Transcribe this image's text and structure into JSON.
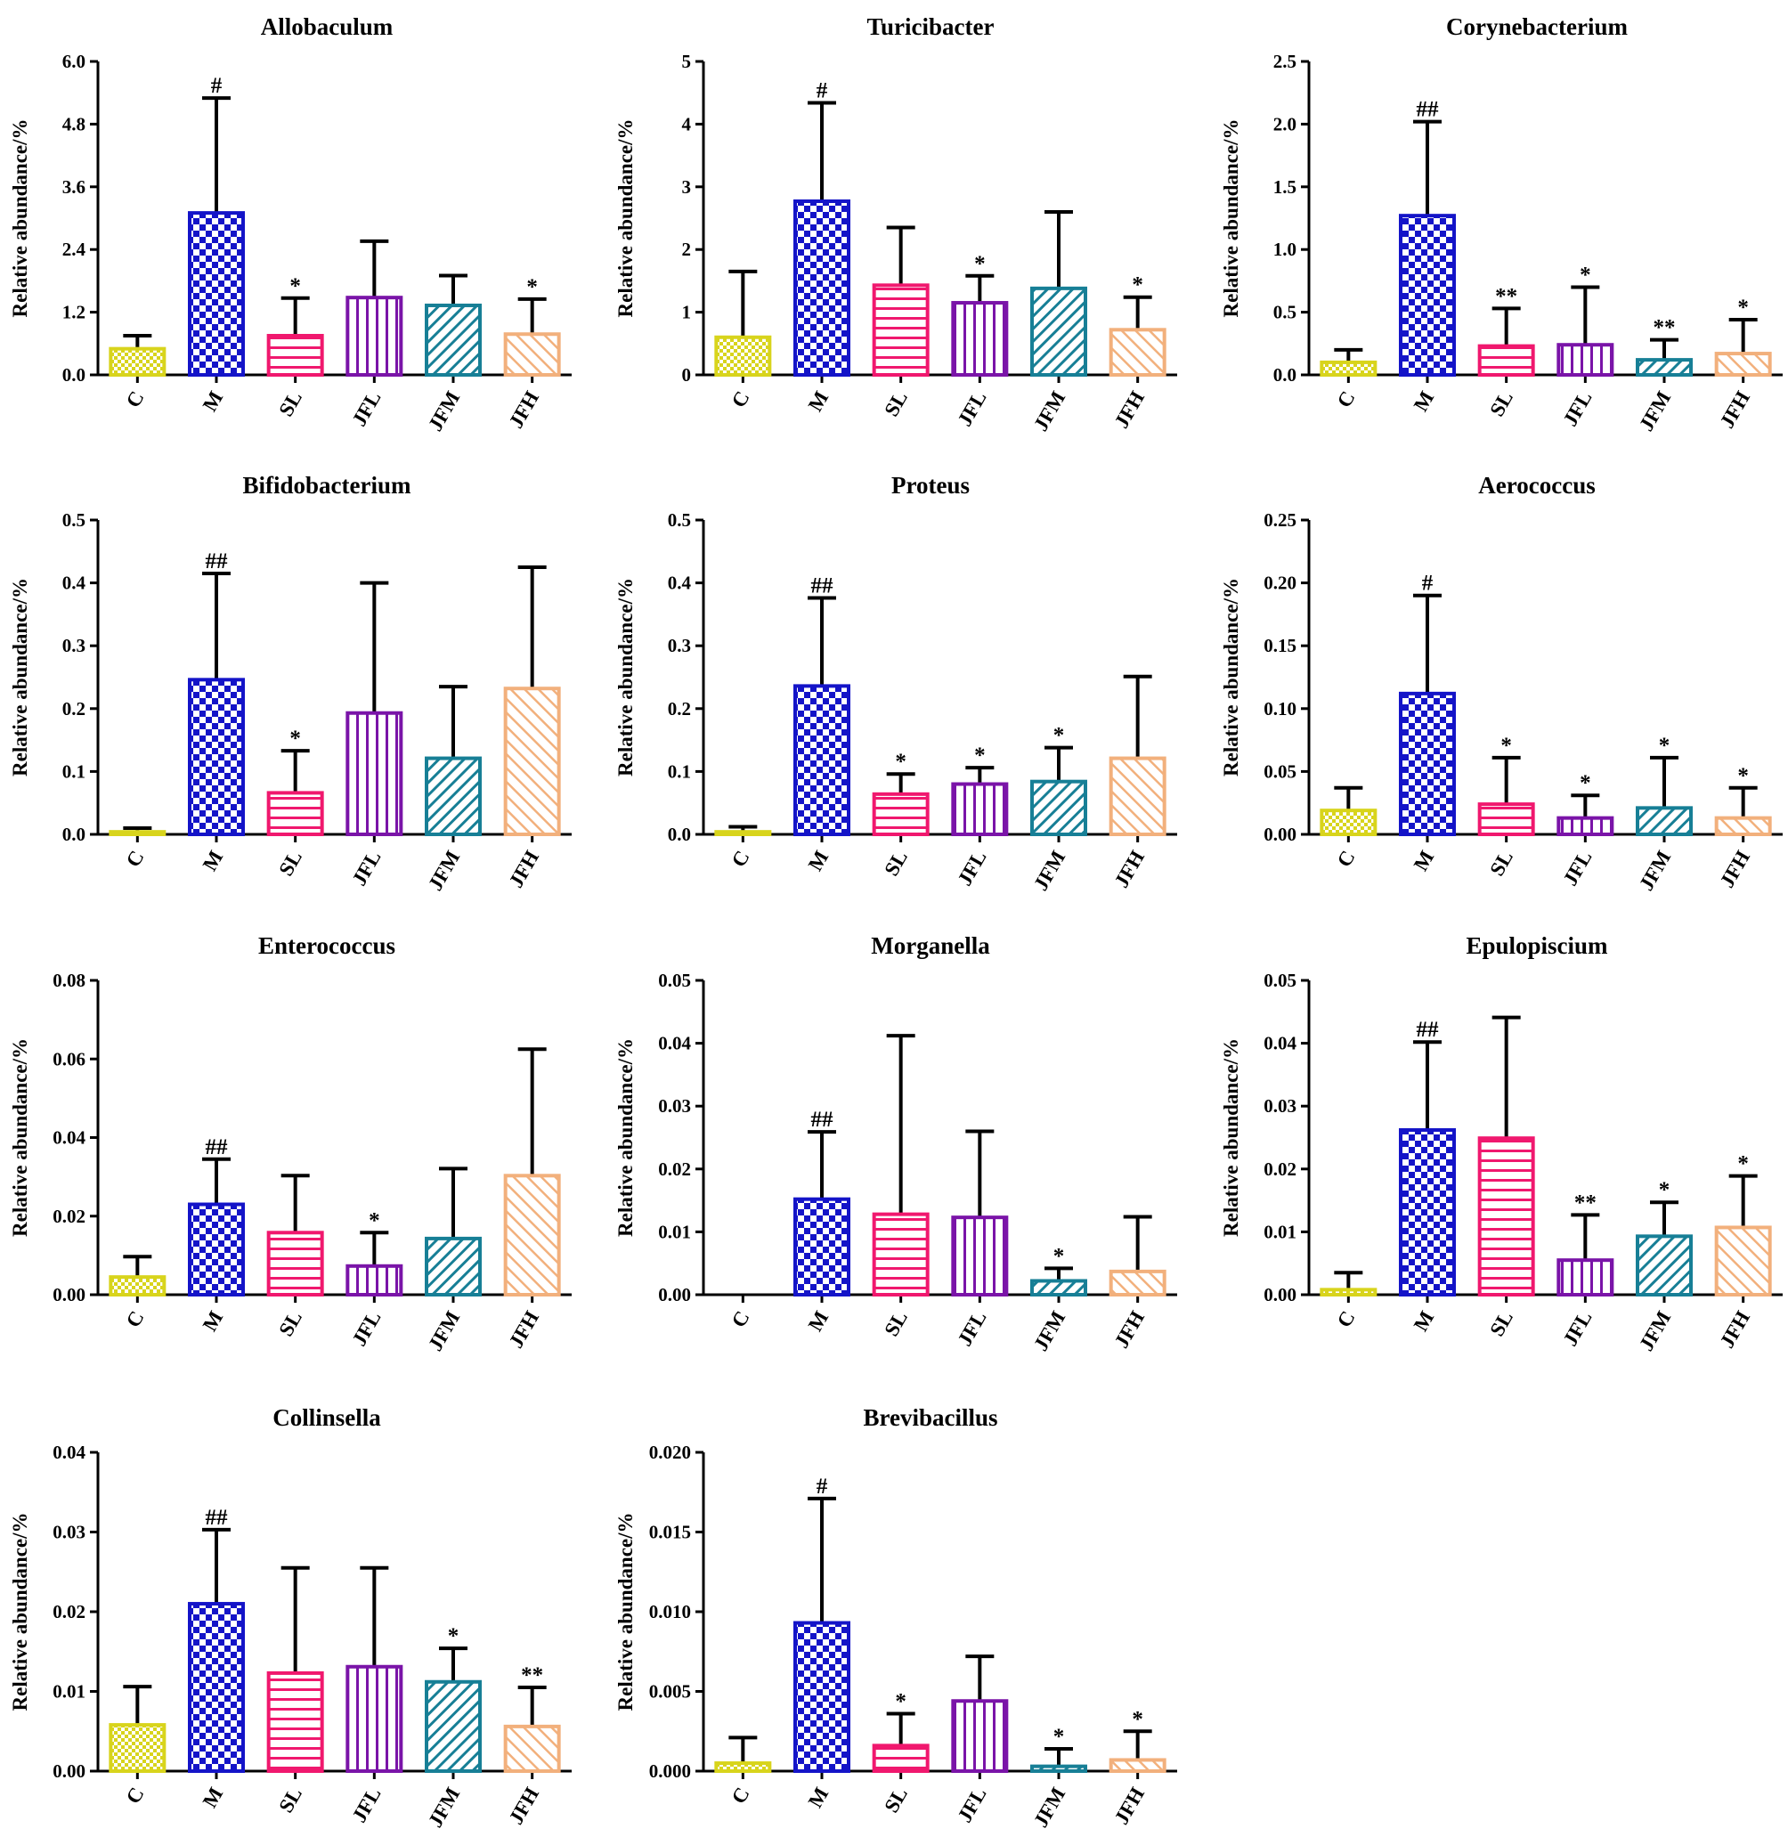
{
  "figure": {
    "ylabel": "Relative abundance/%",
    "groups": [
      "C",
      "M",
      "SL",
      "JFL",
      "JFM",
      "JFH"
    ],
    "colors": {
      "C": "#d8d41c",
      "M": "#1414c8",
      "SL": "#f0186e",
      "JFL": "#7a14a8",
      "JFM": "#177f96",
      "JFH": "#f2b07c"
    }
  },
  "chart_data": [
    {
      "type": "bar",
      "title": "Allobaculum",
      "ylabel": "Relative abundance/%",
      "categories": [
        "C",
        "M",
        "SL",
        "JFL",
        "JFM",
        "JFH"
      ],
      "values": [
        0.5,
        3.1,
        0.75,
        1.48,
        1.33,
        0.78
      ],
      "errors": [
        0.25,
        2.2,
        0.72,
        1.08,
        0.57,
        0.67
      ],
      "annotations": [
        "",
        "#",
        "*",
        "",
        "",
        "*"
      ],
      "ylim": [
        0,
        6.0
      ],
      "ticks": [
        "0.0",
        "1.2",
        "2.4",
        "3.6",
        "4.8",
        "6.0"
      ]
    },
    {
      "type": "bar",
      "title": "Turicibacter",
      "ylabel": "Relative abundance/%",
      "categories": [
        "C",
        "M",
        "SL",
        "JFL",
        "JFM",
        "JFH"
      ],
      "values": [
        0.6,
        2.77,
        1.43,
        1.15,
        1.38,
        0.72
      ],
      "errors": [
        1.05,
        1.57,
        0.92,
        0.43,
        1.22,
        0.52
      ],
      "annotations": [
        "",
        "#",
        "",
        "*",
        "",
        "*"
      ],
      "ylim": [
        0,
        5
      ],
      "ticks": [
        "0",
        "1",
        "2",
        "3",
        "4",
        "5"
      ]
    },
    {
      "type": "bar",
      "title": "Corynebacterium",
      "ylabel": "Relative abundance/%",
      "categories": [
        "C",
        "M",
        "SL",
        "JFL",
        "JFM",
        "JFH"
      ],
      "values": [
        0.1,
        1.27,
        0.23,
        0.24,
        0.12,
        0.17
      ],
      "errors": [
        0.1,
        0.75,
        0.3,
        0.46,
        0.16,
        0.27
      ],
      "annotations": [
        "",
        "##",
        "**",
        "*",
        "**",
        "*"
      ],
      "ylim": [
        0,
        2.5
      ],
      "ticks": [
        "0.0",
        "0.5",
        "1.0",
        "1.5",
        "2.0",
        "2.5"
      ]
    },
    {
      "type": "bar",
      "title": "Bifidobacterium",
      "ylabel": "Relative abundance/%",
      "categories": [
        "C",
        "M",
        "SL",
        "JFL",
        "JFM",
        "JFH"
      ],
      "values": [
        0.004,
        0.246,
        0.066,
        0.193,
        0.121,
        0.232
      ],
      "errors": [
        0.006,
        0.169,
        0.067,
        0.207,
        0.114,
        0.193
      ],
      "annotations": [
        "",
        "##",
        "*",
        "",
        "",
        ""
      ],
      "ylim": [
        0,
        0.5
      ],
      "ticks": [
        "0.0",
        "0.1",
        "0.2",
        "0.3",
        "0.4",
        "0.5"
      ]
    },
    {
      "type": "bar",
      "title": "Proteus",
      "ylabel": "Relative abundance/%",
      "categories": [
        "C",
        "M",
        "SL",
        "JFL",
        "JFM",
        "JFH"
      ],
      "values": [
        0.004,
        0.236,
        0.064,
        0.08,
        0.084,
        0.121
      ],
      "errors": [
        0.008,
        0.14,
        0.032,
        0.026,
        0.054,
        0.13
      ],
      "annotations": [
        "",
        "##",
        "*",
        "*",
        "*",
        ""
      ],
      "ylim": [
        0,
        0.5
      ],
      "ticks": [
        "0.0",
        "0.1",
        "0.2",
        "0.3",
        "0.4",
        "0.5"
      ]
    },
    {
      "type": "bar",
      "title": "Aerococcus",
      "ylabel": "Relative abundance/%",
      "categories": [
        "C",
        "M",
        "SL",
        "JFL",
        "JFM",
        "JFH"
      ],
      "values": [
        0.019,
        0.112,
        0.024,
        0.013,
        0.021,
        0.013
      ],
      "errors": [
        0.018,
        0.078,
        0.037,
        0.018,
        0.04,
        0.024
      ],
      "annotations": [
        "",
        "#",
        "*",
        "*",
        "*",
        "*"
      ],
      "ylim": [
        0,
        0.25
      ],
      "ticks": [
        "0.00",
        "0.05",
        "0.10",
        "0.15",
        "0.20",
        "0.25"
      ]
    },
    {
      "type": "bar",
      "title": "Enterococcus",
      "ylabel": "Relative abundance/%",
      "categories": [
        "C",
        "M",
        "SL",
        "JFL",
        "JFM",
        "JFH"
      ],
      "values": [
        0.0045,
        0.023,
        0.0158,
        0.0073,
        0.0143,
        0.0303
      ],
      "errors": [
        0.0052,
        0.0115,
        0.0145,
        0.0085,
        0.0178,
        0.0322
      ],
      "annotations": [
        "",
        "##",
        "",
        "*",
        "",
        ""
      ],
      "ylim": [
        0,
        0.08
      ],
      "ticks": [
        "0.00",
        "0.02",
        "0.04",
        "0.06",
        "0.08"
      ]
    },
    {
      "type": "bar",
      "title": "Morganella",
      "ylabel": "Relative abundance/%",
      "categories": [
        "C",
        "M",
        "SL",
        "JFL",
        "JFM",
        "JFH"
      ],
      "values": [
        0,
        0.0152,
        0.0128,
        0.0123,
        0.0022,
        0.0037
      ],
      "errors": [
        0,
        0.0107,
        0.0284,
        0.0137,
        0.002,
        0.0087
      ],
      "annotations": [
        "",
        "##",
        "",
        "",
        "*",
        ""
      ],
      "ylim": [
        0,
        0.05
      ],
      "ticks": [
        "0.00",
        "0.01",
        "0.02",
        "0.03",
        "0.04",
        "0.05"
      ]
    },
    {
      "type": "bar",
      "title": "Epulopiscium",
      "ylabel": "Relative abundance/%",
      "categories": [
        "C",
        "M",
        "SL",
        "JFL",
        "JFM",
        "JFH"
      ],
      "values": [
        0.0008,
        0.0262,
        0.0249,
        0.0055,
        0.0093,
        0.0107
      ],
      "errors": [
        0.0027,
        0.014,
        0.0192,
        0.0072,
        0.0054,
        0.0082
      ],
      "annotations": [
        "",
        "##",
        "",
        "**",
        "*",
        "*"
      ],
      "ylim": [
        0,
        0.05
      ],
      "ticks": [
        "0.00",
        "0.01",
        "0.02",
        "0.03",
        "0.04",
        "0.05"
      ]
    },
    {
      "type": "bar",
      "title": "Collinsella",
      "ylabel": "Relative abundance/%",
      "categories": [
        "C",
        "M",
        "SL",
        "JFL",
        "JFM",
        "JFH"
      ],
      "values": [
        0.0058,
        0.021,
        0.0123,
        0.0131,
        0.0112,
        0.0056
      ],
      "errors": [
        0.0048,
        0.0093,
        0.0132,
        0.0124,
        0.0042,
        0.0049
      ],
      "annotations": [
        "",
        "##",
        "",
        "",
        "*",
        "**"
      ],
      "ylim": [
        0,
        0.04
      ],
      "ticks": [
        "0.00",
        "0.01",
        "0.02",
        "0.03",
        "0.04"
      ]
    },
    {
      "type": "bar",
      "title": "Brevibacillus",
      "ylabel": "Relative abundance/%",
      "categories": [
        "C",
        "M",
        "SL",
        "JFL",
        "JFM",
        "JFH"
      ],
      "values": [
        0.0005,
        0.0093,
        0.0016,
        0.0044,
        0.0003,
        0.0007
      ],
      "errors": [
        0.0016,
        0.0078,
        0.002,
        0.0028,
        0.0011,
        0.0018
      ],
      "annotations": [
        "",
        "#",
        "*",
        "",
        "*",
        "*"
      ],
      "ylim": [
        0,
        0.02
      ],
      "ticks": [
        "0.000",
        "0.005",
        "0.010",
        "0.015",
        "0.020"
      ]
    }
  ]
}
